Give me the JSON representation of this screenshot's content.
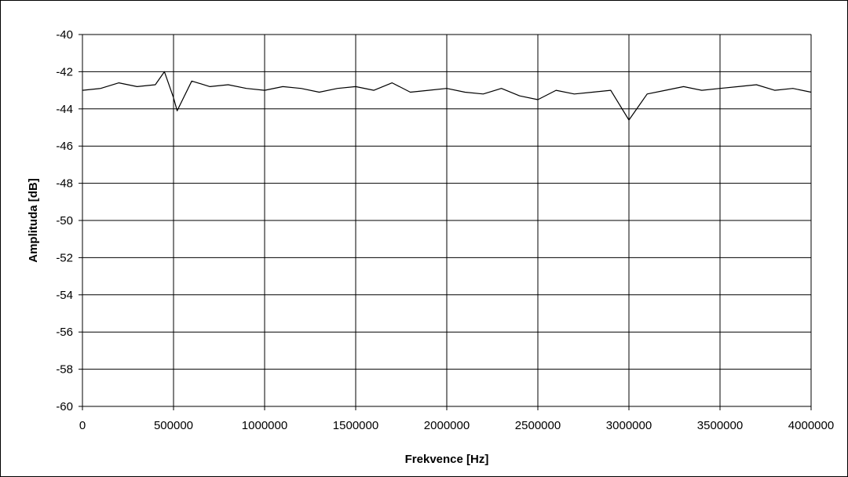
{
  "chart_data": {
    "type": "line",
    "title": "",
    "xlabel": "Frekvence [Hz]",
    "ylabel": "Amplituda [dB]",
    "xlim": [
      0,
      4000000
    ],
    "ylim": [
      -60,
      -40
    ],
    "x_ticks": [
      "0",
      "500000",
      "1000000",
      "1500000",
      "2000000",
      "2500000",
      "3000000",
      "3500000",
      "4000000"
    ],
    "y_ticks": [
      "-40",
      "-42",
      "-44",
      "-46",
      "-48",
      "-50",
      "-52",
      "-54",
      "-56",
      "-58",
      "-60"
    ],
    "grid": true,
    "legend": "none",
    "line_color": "#000000",
    "series": [
      {
        "x": [
          0,
          100000,
          200000,
          300000,
          400000,
          450000,
          500000,
          520000,
          600000,
          700000,
          800000,
          900000,
          1000000,
          1100000,
          1200000,
          1300000,
          1400000,
          1500000,
          1600000,
          1700000,
          1800000,
          1900000,
          2000000,
          2100000,
          2200000,
          2300000,
          2400000,
          2500000,
          2600000,
          2700000,
          2800000,
          2900000,
          3000000,
          3100000,
          3200000,
          3300000,
          3400000,
          3500000,
          3600000,
          3700000,
          3800000,
          3900000,
          4000000
        ],
        "values": [
          -43.0,
          -42.9,
          -42.6,
          -42.8,
          -42.7,
          -42.0,
          -43.4,
          -44.1,
          -42.5,
          -42.8,
          -42.7,
          -42.9,
          -43.0,
          -42.8,
          -42.9,
          -43.1,
          -42.9,
          -42.8,
          -43.0,
          -42.6,
          -43.1,
          -43.0,
          -42.9,
          -43.1,
          -43.2,
          -42.9,
          -43.3,
          -43.5,
          -43.0,
          -43.2,
          -43.1,
          -43.0,
          -44.6,
          -43.2,
          -43.0,
          -42.8,
          -43.0,
          -42.9,
          -42.8,
          -42.7,
          -43.0,
          -42.9,
          -43.1
        ]
      }
    ]
  }
}
